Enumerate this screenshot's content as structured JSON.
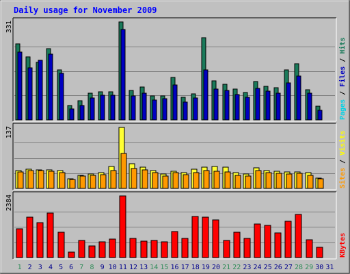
{
  "chart_data": {
    "type": "bar",
    "title": "Daily usage for November 2009",
    "days": [
      "1",
      "2",
      "3",
      "4",
      "5",
      "6",
      "7",
      "8",
      "9",
      "10",
      "11",
      "12",
      "13",
      "14",
      "15",
      "16",
      "17",
      "18",
      "19",
      "20",
      "21",
      "22",
      "23",
      "24",
      "25",
      "26",
      "27",
      "28",
      "29",
      "30",
      "31"
    ],
    "weekend_days": [
      "1",
      "7",
      "8",
      "14",
      "15",
      "21",
      "22",
      "28",
      "29"
    ],
    "weekend_color": "#2e8b57",
    "weekday_color": "#00008b",
    "panels": [
      {
        "id": "top",
        "ymax_label": "331",
        "ymax": 331,
        "legend": [
          {
            "text": "Pages",
            "color": "#00d2e6"
          },
          {
            "text": " / ",
            "color": "#000000"
          },
          {
            "text": "Files",
            "color": "#0000c0"
          },
          {
            "text": " / ",
            "color": "#000000"
          },
          {
            "text": "Hits",
            "color": "#1a7a5a"
          }
        ],
        "series": [
          {
            "name": "Hits",
            "color": "#1a7a5a",
            "values": [
              257,
              212,
              194,
              240,
              169,
              48,
              64,
              90,
              96,
              95,
              331,
              99,
              110,
              81,
              82,
              144,
              77,
              87,
              277,
              131,
              120,
              104,
              93,
              130,
              114,
              109,
              169,
              190,
              103,
              47,
              0
            ]
          },
          {
            "name": "Files",
            "color": "#0000c0",
            "values": [
              230,
              175,
              202,
              223,
              157,
              38,
              48,
              74,
              84,
              84,
              305,
              82,
              90,
              68,
              71,
              118,
              61,
              73,
              168,
              104,
              99,
              86,
              77,
              107,
              98,
              91,
              126,
              148,
              91,
              33,
              0
            ]
          },
          {
            "name": "Pages",
            "color": "#00d2e6",
            "values": [
              0,
              0,
              0,
              0,
              0,
              0,
              0,
              0,
              0,
              0,
              0,
              0,
              0,
              0,
              0,
              0,
              0,
              0,
              0,
              0,
              0,
              0,
              0,
              0,
              0,
              0,
              0,
              0,
              0,
              0,
              0
            ]
          }
        ]
      },
      {
        "id": "middle",
        "ymax_label": "137",
        "ymax": 137,
        "legend": [
          {
            "text": "Sites",
            "color": "#ff9900"
          },
          {
            "text": " / ",
            "color": "#000000"
          },
          {
            "text": "Visits",
            "color": "#ffff00"
          }
        ],
        "series": [
          {
            "name": "Visits",
            "color": "#ffff33",
            "values": [
              40,
              43,
              42,
              42,
              40,
              22,
              30,
              32,
              35,
              49,
              137,
              55,
              48,
              40,
              32,
              38,
              35,
              43,
              48,
              49,
              48,
              35,
              33,
              46,
              40,
              38,
              37,
              37,
              35,
              23,
              0
            ]
          },
          {
            "name": "Sites",
            "color": "#ff9900",
            "values": [
              37,
              40,
              40,
              39,
              36,
              20,
              27,
              29,
              31,
              40,
              78,
              45,
              41,
              35,
              28,
              35,
              31,
              35,
              40,
              38,
              37,
              30,
              28,
              40,
              36,
              34,
              33,
              34,
              30,
              21,
              0
            ]
          }
        ]
      },
      {
        "id": "bottom",
        "ymax_label": "2384",
        "ymax": 2384,
        "legend": [
          {
            "text": "KBytes",
            "color": "#ff0000"
          }
        ],
        "series": [
          {
            "name": "KBytes",
            "color": "#ff0000",
            "values": [
              1120,
              1550,
              1350,
              1720,
              990,
              210,
              670,
              440,
              620,
              720,
              2384,
              740,
              630,
              650,
              600,
              1000,
              740,
              1580,
              1560,
              1470,
              660,
              980,
              730,
              1310,
              1250,
              950,
              1400,
              1680,
              680,
              400,
              0
            ]
          }
        ]
      }
    ]
  }
}
